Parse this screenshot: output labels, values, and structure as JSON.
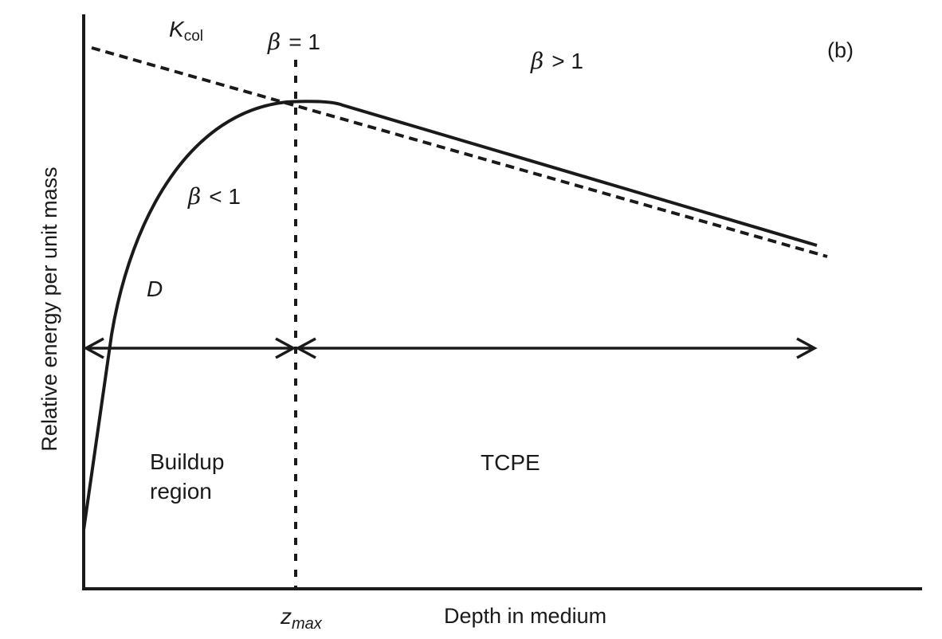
{
  "panel_label": "(b)",
  "axes": {
    "ylabel": "Relative energy per unit mass",
    "xlabel": "Depth in medium",
    "zmax_main": "z",
    "zmax_sub": "max"
  },
  "curves": {
    "kcol_main": "K",
    "kcol_sub": "col",
    "dose": "D"
  },
  "beta_labels": {
    "eq_symbol": "β",
    "eq_rest": "= 1",
    "gt_symbol": "β",
    "gt_rest": "> 1",
    "lt_symbol": "β",
    "lt_rest": "< 1"
  },
  "regions": {
    "buildup_line1": "Buildup",
    "buildup_line2": "region",
    "tcpe": "TCPE"
  },
  "colors": {
    "ink": "#1a1a1a",
    "background": "#ffffff"
  }
}
